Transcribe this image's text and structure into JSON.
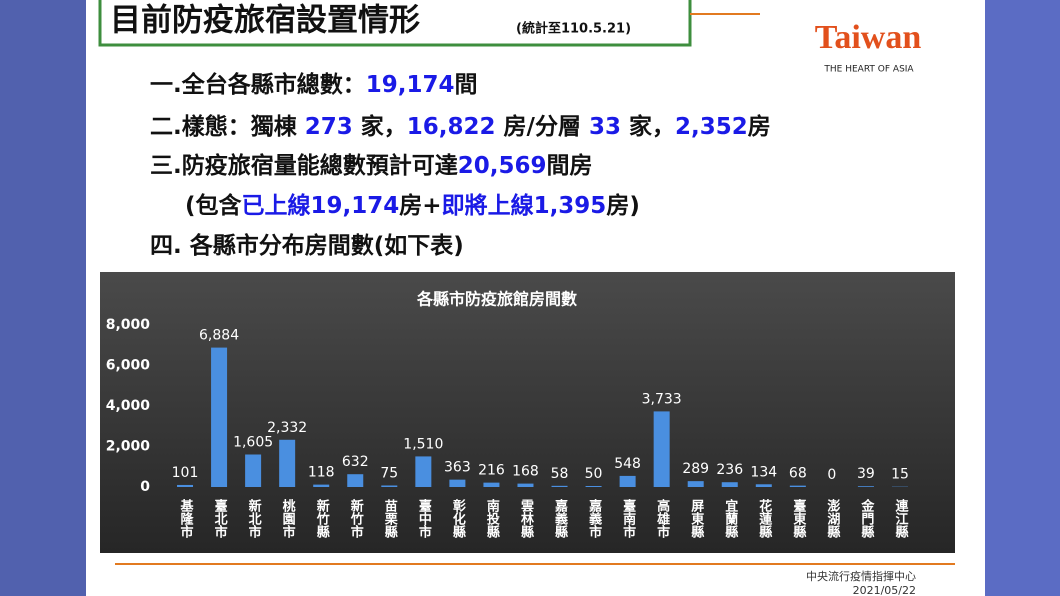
{
  "slide": {
    "title": "目前防疫旅宿設置情形",
    "subtitle": "(統計至110.5.21)",
    "logo": "Taiwan",
    "logo_tagline": "THE HEART OF ASIA",
    "lines": [
      [
        {
          "text": "一.全台各縣市總數：",
          "color": "#111111"
        },
        {
          "text": "19,174",
          "color": "#1a1ae6"
        },
        {
          "text": "間",
          "color": "#111111"
        }
      ],
      [
        {
          "text": "二.樣態：獨棟 ",
          "color": "#111111"
        },
        {
          "text": "273",
          "color": "#1a1ae6"
        },
        {
          "text": " 家，",
          "color": "#111111"
        },
        {
          "text": "16,822",
          "color": "#1a1ae6"
        },
        {
          "text": " 房/分層 ",
          "color": "#111111"
        },
        {
          "text": "33",
          "color": "#1a1ae6"
        },
        {
          "text": " 家，",
          "color": "#111111"
        },
        {
          "text": "2,352",
          "color": "#1a1ae6"
        },
        {
          "text": "房",
          "color": "#111111"
        }
      ],
      [
        {
          "text": "三.防疫旅宿量能總數預計可達",
          "color": "#111111"
        },
        {
          "text": "20,569",
          "color": "#1a1ae6"
        },
        {
          "text": "間房",
          "color": "#111111"
        }
      ],
      [
        {
          "text": "(包含",
          "color": "#111111"
        },
        {
          "text": "已上線19,174",
          "color": "#1a1ae6"
        },
        {
          "text": "房+",
          "color": "#111111"
        },
        {
          "text": "即將上線1,395",
          "color": "#1a1ae6"
        },
        {
          "text": "房)",
          "color": "#111111"
        }
      ],
      [
        {
          "text": "四. 各縣市分布房間數(如下表)",
          "color": "#111111"
        }
      ]
    ],
    "footer": "中央流行疫情指揮中心",
    "date": "2021/05/22"
  },
  "chart_data": {
    "type": "bar",
    "title": "各縣市防疫旅館房間數",
    "categories": [
      "基隆市",
      "臺北市",
      "新北市",
      "桃園市",
      "新竹縣",
      "新竹市",
      "苗栗縣",
      "臺中市",
      "彰化縣",
      "南投縣",
      "雲林縣",
      "嘉義縣",
      "嘉義市",
      "臺南市",
      "高雄市",
      "屏東縣",
      "宜蘭縣",
      "花蓮縣",
      "臺東縣",
      "澎湖縣",
      "金門縣",
      "連江縣"
    ],
    "values": [
      101,
      6884,
      1605,
      2332,
      118,
      632,
      75,
      1510,
      363,
      216,
      168,
      58,
      50,
      548,
      3733,
      289,
      236,
      134,
      68,
      0,
      39,
      15
    ],
    "value_labels": [
      "101",
      "6,884",
      "1,605",
      "2,332",
      "118",
      "632",
      "75",
      "1,510",
      "363",
      "216",
      "168",
      "58",
      "50",
      "548",
      "3,733",
      "289",
      "236",
      "134",
      "68",
      "0",
      "39",
      "15"
    ],
    "color": "#4a8fe0",
    "ylim": [
      0,
      8000
    ],
    "yticks": [
      0,
      {
        "value": 2000,
        "label": "2,000"
      },
      {
        "value": 4000,
        "label": "4,000"
      },
      {
        "value": 6000,
        "label": "6,000"
      },
      {
        "value": 8000,
        "label": "8,000"
      }
    ],
    "grid": false
  }
}
